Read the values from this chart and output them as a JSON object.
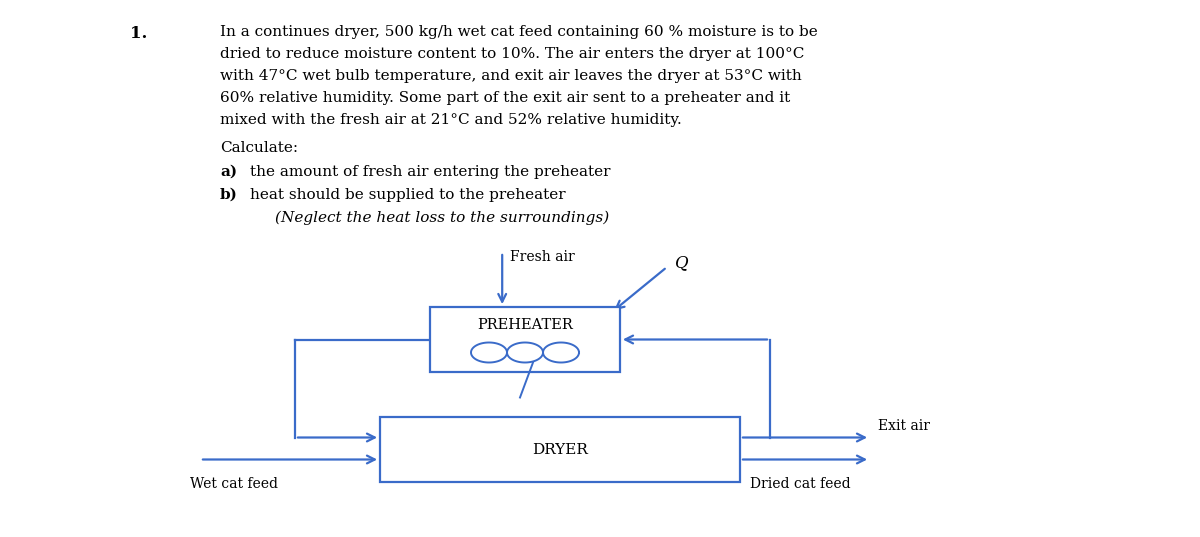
{
  "background_color": "#ffffff",
  "text_color": "#000000",
  "diagram_color": "#3a6bc9",
  "title_number": "1.",
  "problem_text_lines": [
    "In a continues dryer, 500 kg/h wet cat feed containing 60 % moisture is to be",
    "dried to reduce moisture content to 10%. The air enters the dryer at 100°C",
    "with 47°C wet bulb temperature, and exit air leaves the dryer at 53°C with",
    "60% relative humidity. Some part of the exit air sent to a preheater and it",
    "mixed with the fresh air at 21°C and 52% relative humidity."
  ],
  "calculate_label": "Calculate:",
  "part_a_label": "a)",
  "part_a_text": "the amount of fresh air entering the preheater",
  "part_b_label": "b)",
  "part_b_text": "heat should be supplied to the preheater",
  "part_c_text": "(Neglect the heat loss to the surroundings)",
  "label_fresh_air": "Fresh air",
  "label_Q": "Q",
  "label_preheater": "PREHEATER",
  "label_dryer": "DRYER",
  "label_exit_air": "Exit air",
  "label_wet_feed": "Wet cat feed",
  "label_dried_feed": "Dried cat feed",
  "figsize": [
    12.0,
    5.37
  ],
  "dpi": 100
}
